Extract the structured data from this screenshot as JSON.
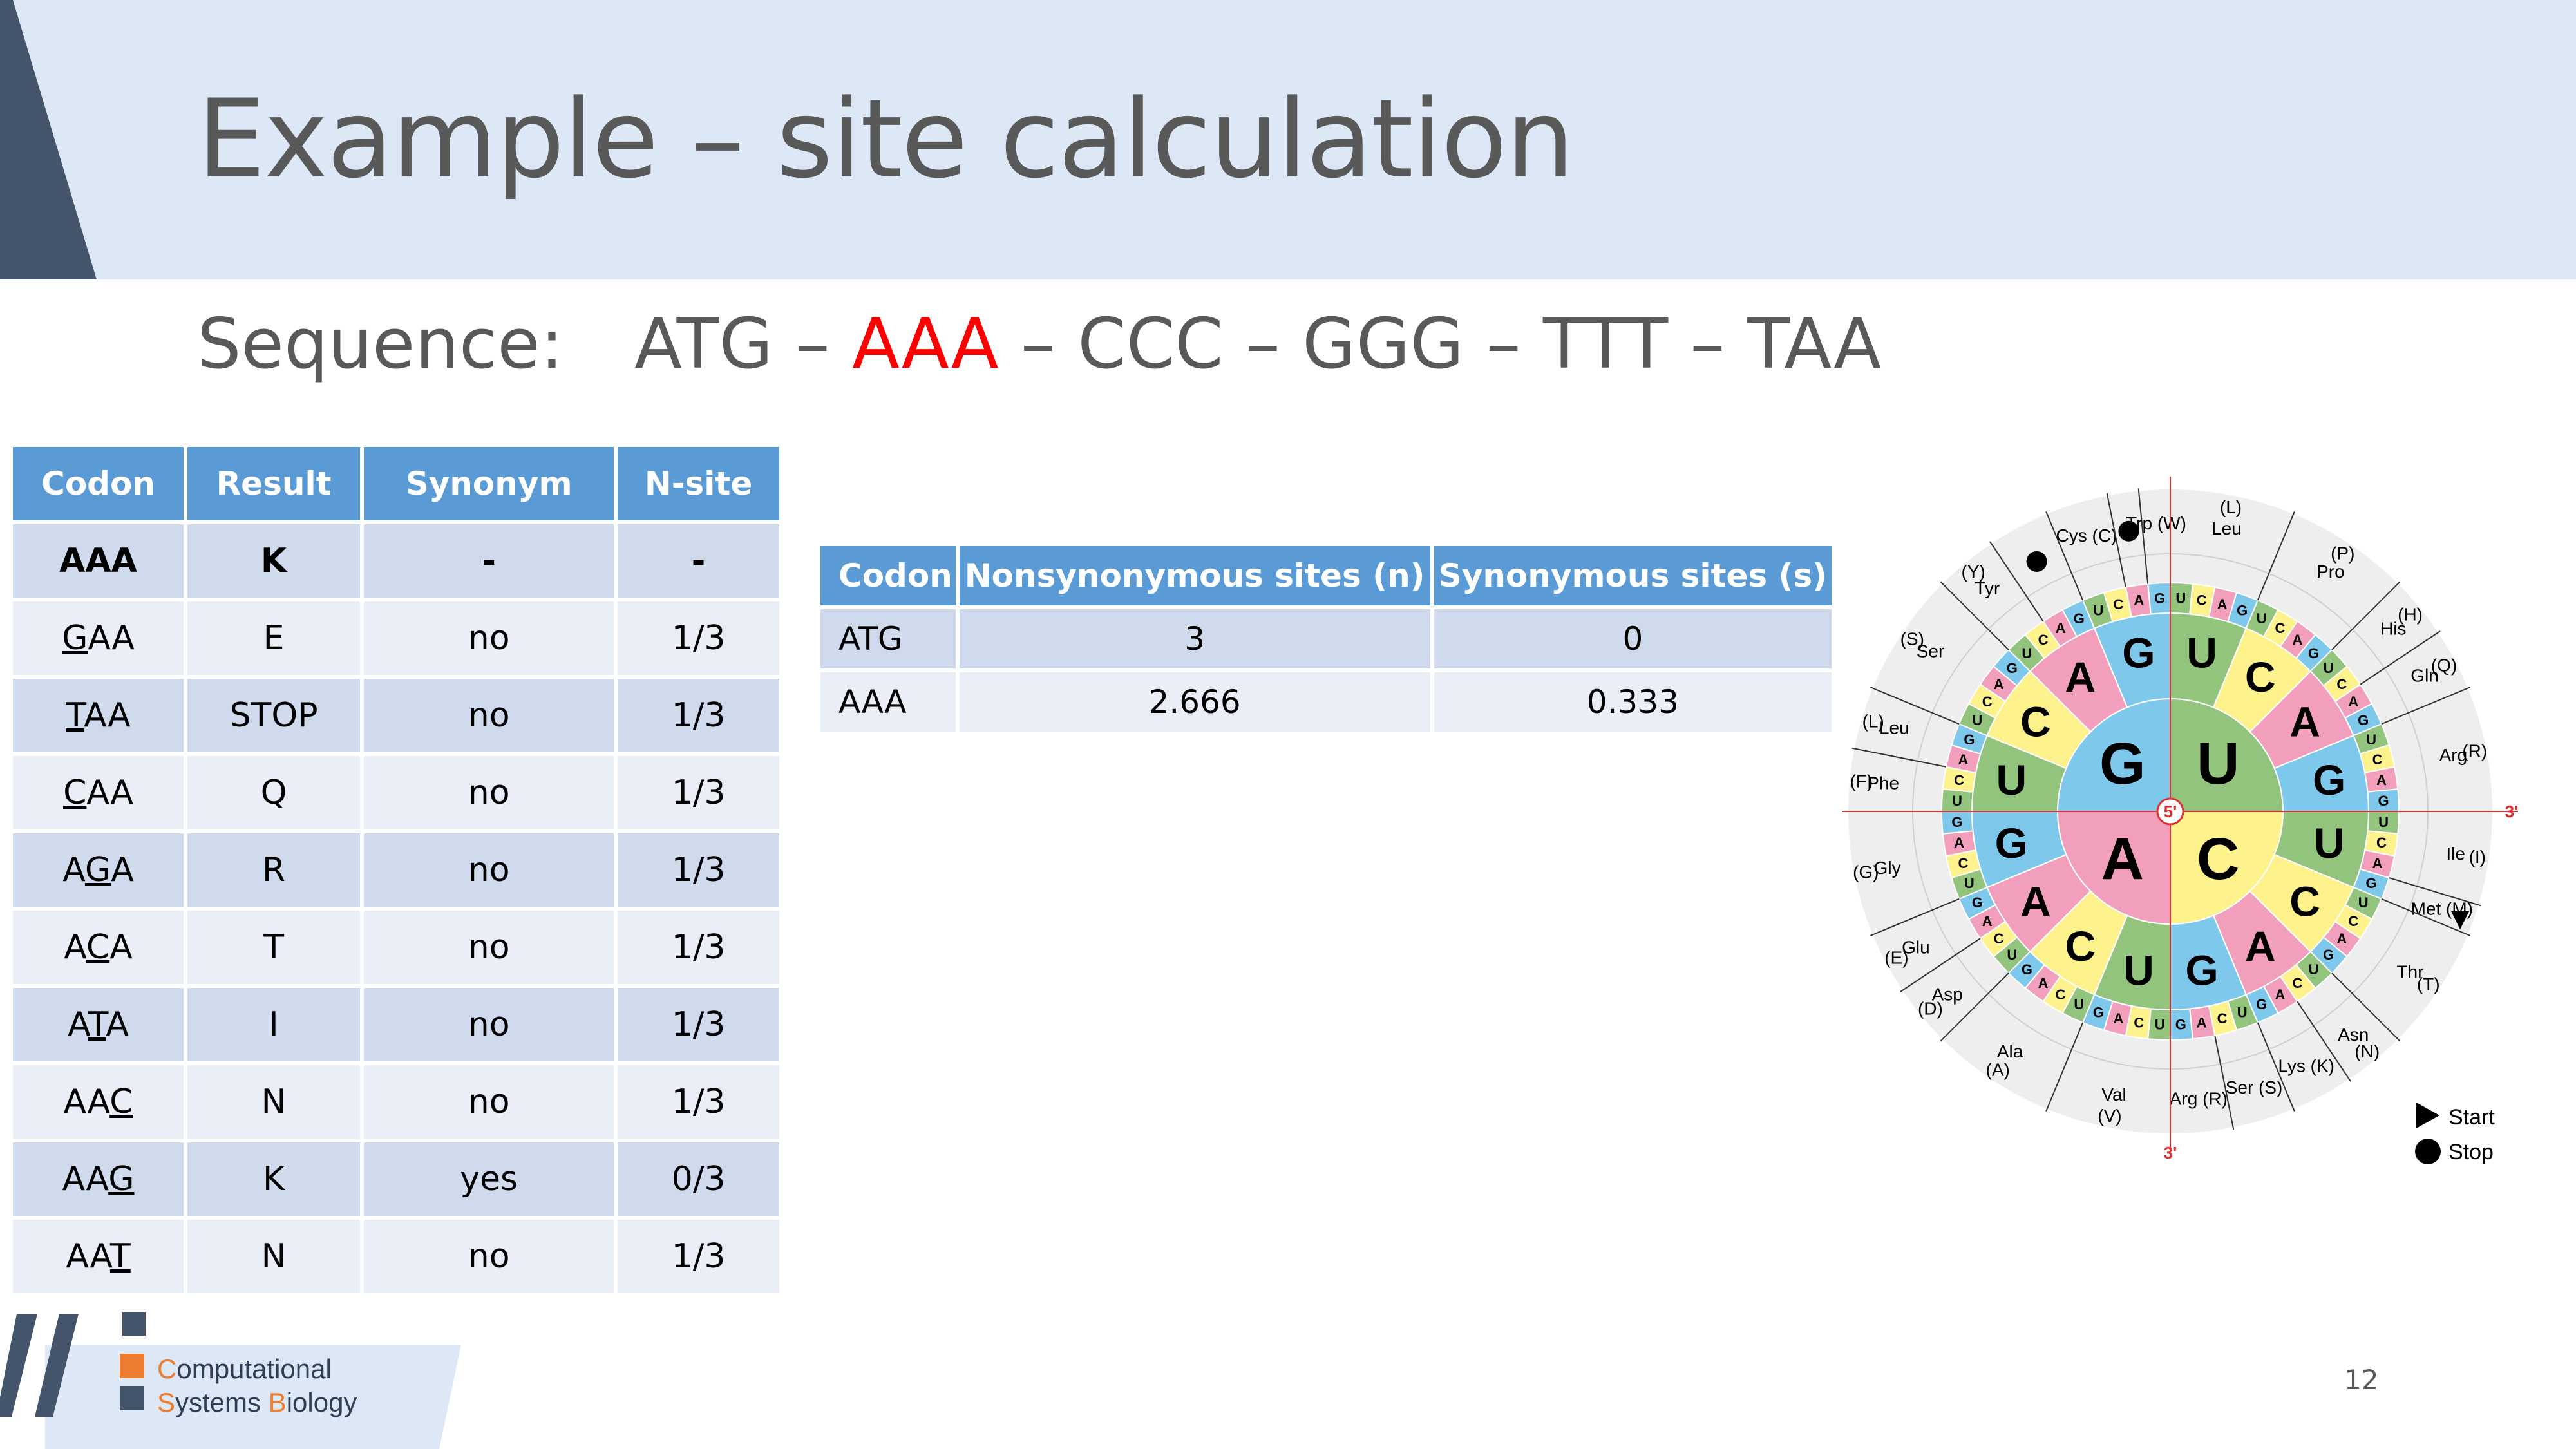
{
  "slide": {
    "title": "Example – site calculation",
    "sequence": {
      "label": "Sequence:",
      "codons": [
        "ATG",
        "AAA",
        "CCC",
        "GGG",
        "TTT",
        "TAA"
      ],
      "separator": " – ",
      "highlight_color": "#ff0000"
    },
    "page_number": "12"
  },
  "mutation_table": {
    "headers": [
      "Codon",
      "Result",
      "Synonym",
      "N-site"
    ],
    "rows": [
      {
        "pre": "",
        "mut": "",
        "post": "AAA",
        "result": "K",
        "synonym": "-",
        "nsite": "-"
      },
      {
        "pre": "",
        "mut": "G",
        "post": "AA",
        "result": "E",
        "synonym": "no",
        "nsite": "1/3"
      },
      {
        "pre": "",
        "mut": "T",
        "post": "AA",
        "result": "STOP",
        "synonym": "no",
        "nsite": "1/3"
      },
      {
        "pre": "",
        "mut": "C",
        "post": "AA",
        "result": "Q",
        "synonym": "no",
        "nsite": "1/3"
      },
      {
        "pre": "A",
        "mut": "G",
        "post": "A",
        "result": "R",
        "synonym": "no",
        "nsite": "1/3"
      },
      {
        "pre": "A",
        "mut": "C",
        "post": "A",
        "result": "T",
        "synonym": "no",
        "nsite": "1/3"
      },
      {
        "pre": "A",
        "mut": "T",
        "post": "A",
        "result": "I",
        "synonym": "no",
        "nsite": "1/3"
      },
      {
        "pre": "AA",
        "mut": "C",
        "post": "",
        "result": "N",
        "synonym": "no",
        "nsite": "1/3"
      },
      {
        "pre": "AA",
        "mut": "G",
        "post": "",
        "result": "K",
        "synonym": "yes",
        "nsite": "0/3"
      },
      {
        "pre": "AA",
        "mut": "T",
        "post": "",
        "result": "N",
        "synonym": "no",
        "nsite": "1/3"
      }
    ]
  },
  "sites_table": {
    "headers": [
      "Codon",
      "Nonsynonymous sites (n)",
      "Synonymous sites (s)"
    ],
    "rows": [
      {
        "codon": "ATG",
        "n": "3",
        "s": "0"
      },
      {
        "codon": "AAA",
        "n": "2.666",
        "s": "0.333"
      }
    ]
  },
  "codon_wheel": {
    "center_label": "5'",
    "end_label": "3'",
    "colors": {
      "G": "#7ec8ec",
      "U": "#93c47d",
      "C": "#fdf28c",
      "A": "#f29fbd"
    },
    "first_bases": [
      "G",
      "U",
      "C",
      "A"
    ],
    "second_bases": [
      "U",
      "C",
      "A",
      "G"
    ],
    "third_bases": [
      "U",
      "C",
      "A",
      "G"
    ],
    "amino_acids": [
      {
        "name": "Phe",
        "code": "(F)",
        "start": 0,
        "n": 2
      },
      {
        "name": "Leu",
        "code": "(L)",
        "start": 2,
        "n": 2
      },
      {
        "name": "Ser",
        "code": "(S)",
        "start": 4,
        "n": 4
      },
      {
        "name": "Tyr",
        "code": "(Y)",
        "start": 8,
        "n": 2
      },
      {
        "name": "",
        "code": "",
        "start": 10,
        "n": 2,
        "stop": true
      },
      {
        "name": "Cys (C)",
        "code": "",
        "start": 12,
        "n": 2
      },
      {
        "name": "",
        "code": "",
        "start": 14,
        "n": 1,
        "stop": true
      },
      {
        "name": "Trp (W)",
        "code": "",
        "start": 15,
        "n": 1
      },
      {
        "name": "Leu",
        "code": "(L)",
        "start": 16,
        "n": 4
      },
      {
        "name": "Pro",
        "code": "(P)",
        "start": 20,
        "n": 4
      },
      {
        "name": "His",
        "code": "(H)",
        "start": 24,
        "n": 2
      },
      {
        "name": "Gln",
        "code": "(Q)",
        "start": 26,
        "n": 2
      },
      {
        "name": "Arg",
        "code": "(R)",
        "start": 28,
        "n": 4
      },
      {
        "name": "Ile",
        "code": "(I)",
        "start": 32,
        "n": 3
      },
      {
        "name": "Met (M)",
        "code": "",
        "start": 35,
        "n": 1,
        "start_codon": true
      },
      {
        "name": "Thr",
        "code": "(T)",
        "start": 36,
        "n": 4
      },
      {
        "name": "Asn",
        "code": "(N)",
        "start": 40,
        "n": 2
      },
      {
        "name": "Lys (K)",
        "code": "",
        "start": 42,
        "n": 2
      },
      {
        "name": "Ser (S)",
        "code": "",
        "start": 44,
        "n": 2
      },
      {
        "name": "Arg (R)",
        "code": "",
        "start": 46,
        "n": 2
      },
      {
        "name": "Val",
        "code": "(V)",
        "start": 48,
        "n": 4
      },
      {
        "name": "Ala",
        "code": "(A)",
        "start": 52,
        "n": 4
      },
      {
        "name": "Asp",
        "code": "(D)",
        "start": 56,
        "n": 2
      },
      {
        "name": "Glu",
        "code": "(E)",
        "start": 58,
        "n": 2
      },
      {
        "name": "Gly",
        "code": "(G)",
        "start": 60,
        "n": 4
      }
    ],
    "legend": {
      "start": "Start",
      "stop": "Stop"
    }
  },
  "logo": {
    "line1_initial": "C",
    "line1_rest": "omputational",
    "line2_initial1": "S",
    "line2_middle": "ystems ",
    "line2_initial2": "B",
    "line2_rest": "iology",
    "colors": {
      "orange": "#ed7d31",
      "navy": "#44546a"
    }
  }
}
